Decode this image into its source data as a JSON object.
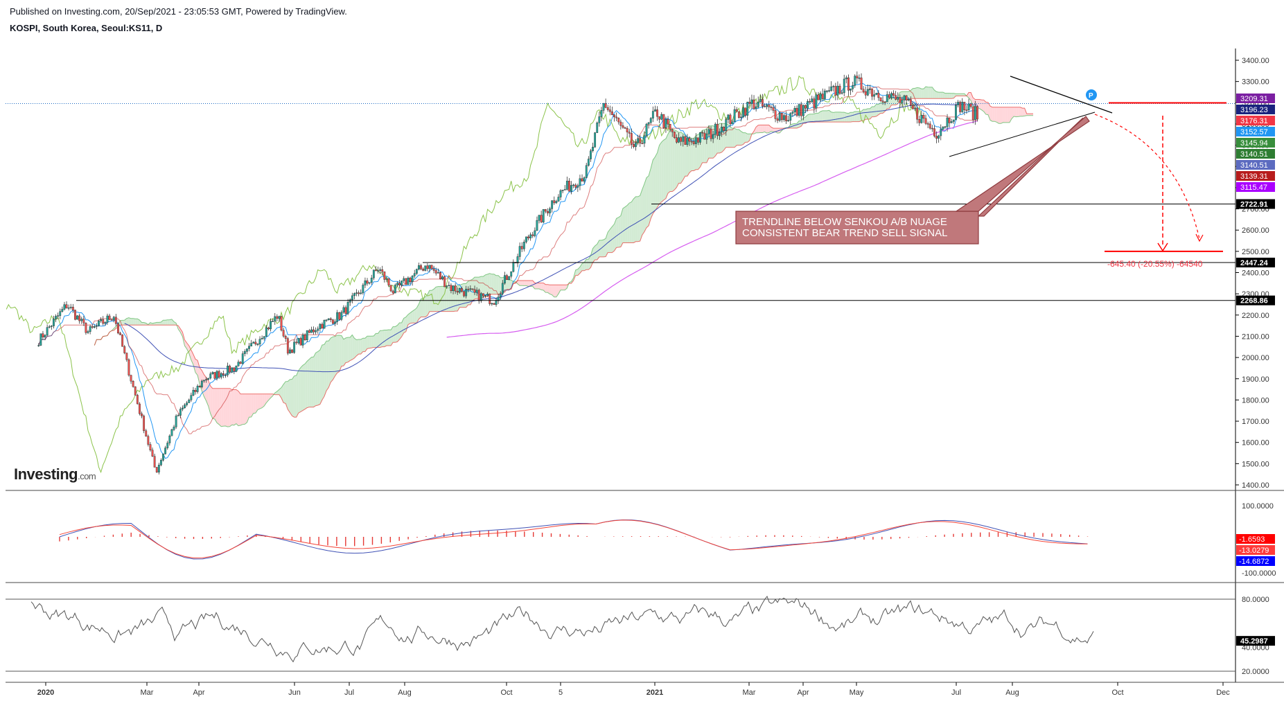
{
  "header": {
    "published": "Published on Investing.com, 20/Sep/2021 - 23:05:53 GMT, Powered by TradingView.",
    "symbol": "KOSPI, South Korea, Seoul:KS11, D"
  },
  "watermark": {
    "brand": "Investing",
    "suffix": ".com"
  },
  "colors": {
    "candle_up": "#26a69a",
    "candle_down": "#ef5350",
    "tenkan": "#2196f3",
    "kijun": "#e57373",
    "chikou": "#8bc34a",
    "cloud_bull": "#c8e6c9",
    "cloud_bear": "#ffcdd2",
    "ma_blue": "#3f51b5",
    "ma_purple": "#d65cf0",
    "annotation_fill": "#c0787b",
    "arrow_red": "#ff0000"
  },
  "chart_data": [
    {
      "type": "candlestick",
      "title": "",
      "ylim": [
        1380,
        3480
      ],
      "y_ticks": [
        "3400.00",
        "3300.00",
        "3200.00",
        "3100.00",
        "3000.00",
        "2900.00",
        "2800.00",
        "2700.00",
        "2600.00",
        "2500.00",
        "2400.00",
        "2300.00",
        "2200.00",
        "2100.00",
        "2000.00",
        "1900.00",
        "1800.00",
        "1700.00",
        "1600.00",
        "1500.00",
        "1400.00"
      ],
      "x_ticks": [
        "2020",
        "Mar",
        "Apr",
        "Jun",
        "Jul",
        "Aug",
        "Oct",
        "5",
        "2021",
        "Mar",
        "Apr",
        "May",
        "Jul",
        "Aug",
        "Oct",
        "Dec"
      ],
      "close_anchors": [
        [
          "2020-01-01",
          2080
        ],
        [
          "2020-01-20",
          2250
        ],
        [
          "2020-02-03",
          2120
        ],
        [
          "2020-02-20",
          2200
        ],
        [
          "2020-03-19",
          1460
        ],
        [
          "2020-04-02",
          1720
        ],
        [
          "2020-04-20",
          1900
        ],
        [
          "2020-05-10",
          1950
        ],
        [
          "2020-06-08",
          2200
        ],
        [
          "2020-06-15",
          2030
        ],
        [
          "2020-07-05",
          2150
        ],
        [
          "2020-07-20",
          2200
        ],
        [
          "2020-08-14",
          2420
        ],
        [
          "2020-08-24",
          2310
        ],
        [
          "2020-09-15",
          2440
        ],
        [
          "2020-10-01",
          2330
        ],
        [
          "2020-10-30",
          2270
        ],
        [
          "2020-11-20",
          2550
        ],
        [
          "2020-12-10",
          2760
        ],
        [
          "2020-12-30",
          2870
        ],
        [
          "2021-01-11",
          3200
        ],
        [
          "2021-02-01",
          2980
        ],
        [
          "2021-02-15",
          3160
        ],
        [
          "2021-03-01",
          3010
        ],
        [
          "2021-03-20",
          3040
        ],
        [
          "2021-04-20",
          3200
        ],
        [
          "2021-05-12",
          3130
        ],
        [
          "2021-06-25",
          3300
        ],
        [
          "2021-07-10",
          3250
        ],
        [
          "2021-07-30",
          3200
        ],
        [
          "2021-08-20",
          3060
        ],
        [
          "2021-09-05",
          3190
        ],
        [
          "2021-09-17",
          3140
        ]
      ],
      "price_labels": [
        {
          "value": "3209.31",
          "color": "#7b1fa2"
        },
        {
          "value": "3196.23",
          "color": "#1a237e"
        },
        {
          "value": "3176.31",
          "color": "#f23645"
        },
        {
          "value": "3152.57",
          "color": "#2196f3"
        },
        {
          "value": "3145.94",
          "color": "#388e3c"
        },
        {
          "value": "3140.51",
          "color": "#2e7d32"
        },
        {
          "value": "3140.51",
          "color": "#5c6bc0"
        },
        {
          "value": "3139.31",
          "color": "#b71c1c"
        },
        {
          "value": "3115.47",
          "color": "#aa00ff"
        },
        {
          "value": "2722.91",
          "color": "#131722"
        },
        {
          "value": "2447.24",
          "color": "#131722"
        },
        {
          "value": "2268.86",
          "color": "#131722"
        }
      ],
      "horizontal_levels": [
        2722.91,
        2447.24,
        2268.86
      ],
      "current_price_line": 3196.23,
      "target_level": 2500,
      "annotation": {
        "line1": "TRENDLINE BELOW  SENKOU A/B NUAGE",
        "line2": "CONSISTENT BEAR TREND SELL SIGNAL"
      },
      "measure_label": "-645.40 (-20.55%) -64540",
      "pin_label": "P"
    },
    {
      "type": "line",
      "title": "MACD",
      "ylim": [
        -150,
        150
      ],
      "y_ticks": [
        "100.0000",
        "-100.0000"
      ],
      "value_labels": [
        {
          "value": "-1.6593",
          "color": "#ff0000"
        },
        {
          "value": "-13.0279",
          "color": "#ff3b3b"
        },
        {
          "value": "-14.6872",
          "color": "#0000ff"
        }
      ]
    },
    {
      "type": "line",
      "title": "RSI",
      "ylim": [
        10,
        95
      ],
      "y_ticks": [
        "80.0000",
        "40.0000",
        "20.0000"
      ],
      "levels": [
        80,
        20
      ],
      "value_labels": [
        {
          "value": "45.2987",
          "color": "#000000"
        }
      ]
    }
  ]
}
